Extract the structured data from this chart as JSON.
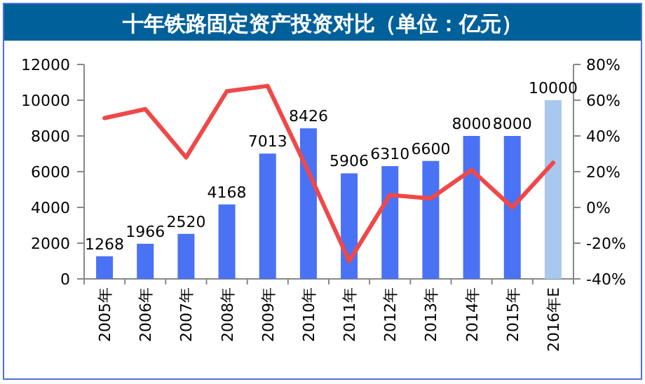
{
  "chart_data": {
    "type": "bar",
    "title": "十年铁路固定资产投资对比（单位：亿元）",
    "categories": [
      "2005年",
      "2006年",
      "2007年",
      "2008年",
      "2009年",
      "2010年",
      "2011年",
      "2012年",
      "2013年",
      "2014年",
      "2015年",
      "2016年E"
    ],
    "series": [
      {
        "colors": [
          "#4a72f5",
          "#4a72f5",
          "#4a72f5",
          "#4a72f5",
          "#4a72f5",
          "#4a72f5",
          "#4a72f5",
          "#4a72f5",
          "#4a72f5",
          "#4a72f5",
          "#4a72f5",
          "#a9c8ef"
        ],
        "values": [
          1268,
          1966,
          2520,
          4168,
          7013,
          8426,
          5906,
          6310,
          6600,
          8000,
          8000,
          10000
        ],
        "value_labels": [
          "1268",
          "1966",
          "2520",
          "4168",
          "7013",
          "8426",
          "5906",
          "6310",
          "6600",
          "8000",
          "8000",
          "10000"
        ]
      },
      {
        "type": "line",
        "axis": "y2",
        "color": "#f04848",
        "values": [
          50,
          55,
          28,
          65,
          68,
          20,
          -30,
          7,
          5,
          21,
          0,
          25
        ]
      }
    ],
    "ylim": [
      0,
      12000
    ],
    "yticks": [
      0,
      2000,
      4000,
      6000,
      8000,
      10000,
      12000
    ],
    "y2lim": [
      -40,
      80
    ],
    "y2ticks": [
      {
        "value": -40,
        "label": "-40%"
      },
      {
        "value": -20,
        "label": "-20%"
      },
      {
        "value": 0,
        "label": "0%"
      },
      {
        "value": 20,
        "label": "20%"
      },
      {
        "value": 40,
        "label": "40%"
      },
      {
        "value": 60,
        "label": "60%"
      },
      {
        "value": 80,
        "label": "80%"
      }
    ],
    "grid": false,
    "marker": "none",
    "line_style": "solid"
  }
}
